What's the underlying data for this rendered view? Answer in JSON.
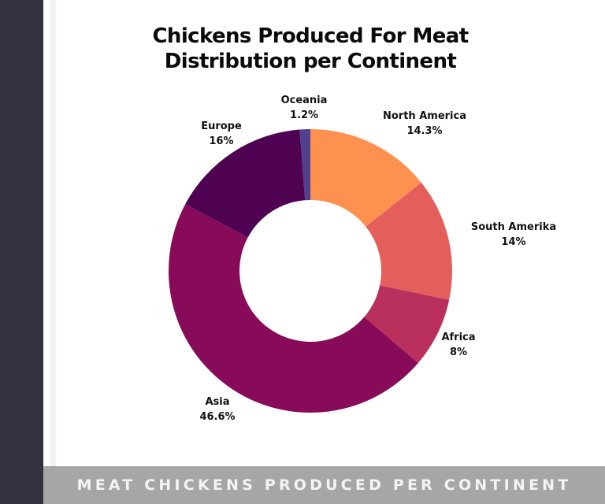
{
  "page": {
    "title_line1": "Chickens Produced For Meat",
    "title_line2": "Distribution per Continent",
    "footer_caption": "MEAT CHICKENS PRODUCED PER CONTINENT"
  },
  "colors": {
    "left_bar": "#34303d",
    "footer_bg": "#a6a6a6",
    "footer_text": "#f4f4f2"
  },
  "labels": {
    "oceania": {
      "name": "Oceania",
      "value": "1.2%"
    },
    "north_america": {
      "name": "North America",
      "value": "14.3%"
    },
    "south_amerika": {
      "name": "South Amerika",
      "value": "14%"
    },
    "africa": {
      "name": "Africa",
      "value": "8%"
    },
    "asia": {
      "name": "Asia",
      "value": "46.6%"
    },
    "europe": {
      "name": "Europe",
      "value": "16%"
    }
  },
  "chart_data": {
    "type": "pie",
    "subtype": "donut",
    "title": "Chickens Produced For Meat Distribution per Continent",
    "caption": "MEAT CHICKENS PRODUCED PER CONTINENT",
    "start_angle": "12 o'clock, clockwise",
    "categories": [
      "North America",
      "South Amerika",
      "Africa",
      "Asia",
      "Europe",
      "Oceania"
    ],
    "values": [
      14.3,
      14,
      8,
      46.6,
      16,
      1.2
    ],
    "unit": "%",
    "colors": [
      "#fe914f",
      "#e45f5b",
      "#b9305d",
      "#870b59",
      "#4f0152",
      "#50418e"
    ],
    "legend": "none (labels placed outside slices)"
  }
}
